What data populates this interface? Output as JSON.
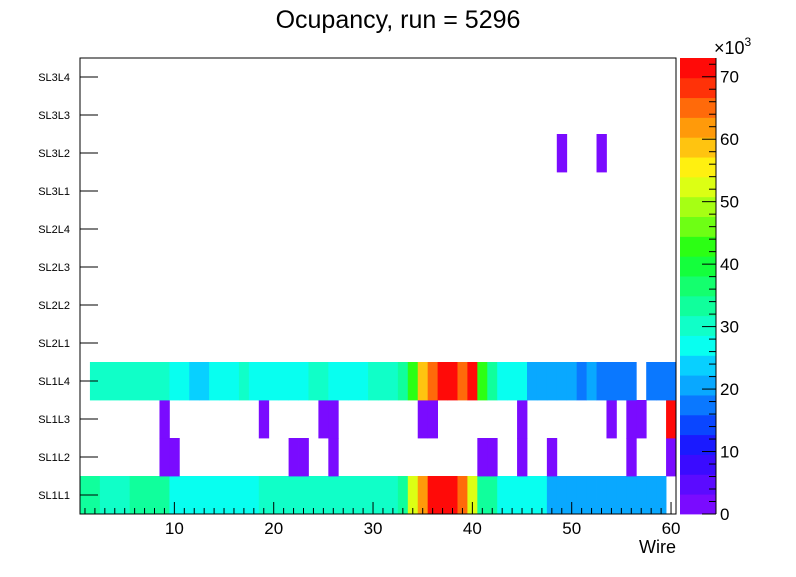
{
  "chart_data": {
    "type": "heatmap",
    "title": "Ocupancy, run = 5296",
    "xlabel": "Wire",
    "ylabel": "",
    "x_ticks": [
      10,
      20,
      30,
      40,
      50,
      60
    ],
    "xlim": [
      0.5,
      60.5
    ],
    "y_categories": [
      "SL1L1",
      "SL1L2",
      "SL1L3",
      "SL1L4",
      "SL2L1",
      "SL2L2",
      "SL2L3",
      "SL2L4",
      "SL3L1",
      "SL3L2",
      "SL3L3",
      "SL3L4"
    ],
    "colorbar": {
      "zlim": [
        0,
        73
      ],
      "ticks": [
        0,
        10,
        20,
        30,
        40,
        50,
        60,
        70
      ],
      "exponent_label": "×10",
      "exponent": "3"
    },
    "rows": {
      "SL1L1": [
        33,
        33,
        31,
        31,
        31,
        34,
        34,
        34,
        32,
        26,
        26,
        26,
        26,
        26,
        26,
        26,
        26,
        26,
        31,
        31,
        31,
        31,
        31,
        31,
        31,
        31,
        31,
        31,
        31,
        31,
        31,
        31,
        34,
        53,
        63,
        72,
        72,
        72,
        65,
        53,
        34,
        34,
        28,
        28,
        28,
        28,
        28,
        22,
        22,
        22,
        22,
        22,
        22,
        22,
        22,
        22,
        20,
        20,
        20,
        0
      ],
      "SL1L2": [
        0,
        0,
        0,
        0,
        0,
        0,
        0,
        0,
        3,
        3,
        0,
        0,
        0,
        0,
        0,
        0,
        0,
        0,
        0,
        0,
        0,
        3,
        3,
        0,
        0,
        3,
        0,
        0,
        0,
        0,
        0,
        0,
        0,
        0,
        0,
        0,
        0,
        0,
        0,
        0,
        3,
        3,
        0,
        0,
        3,
        0,
        0,
        3,
        0,
        0,
        0,
        0,
        0,
        0,
        0,
        3,
        0,
        0,
        0,
        3
      ],
      "SL1L3": [
        0,
        0,
        0,
        0,
        0,
        0,
        0,
        0,
        3,
        0,
        0,
        0,
        0,
        0,
        0,
        0,
        0,
        0,
        3,
        0,
        0,
        0,
        0,
        0,
        3,
        3,
        0,
        0,
        0,
        0,
        0,
        0,
        0,
        0,
        3,
        3,
        0,
        0,
        0,
        0,
        0,
        0,
        0,
        0,
        3,
        0,
        0,
        0,
        0,
        0,
        0,
        0,
        0,
        3,
        0,
        3,
        3,
        0,
        0,
        72
      ],
      "SL1L4": [
        0,
        29,
        29,
        29,
        29,
        29,
        29,
        29,
        29,
        26,
        26,
        24,
        24,
        26,
        26,
        26,
        29,
        28,
        28,
        28,
        28,
        28,
        28,
        31,
        31,
        28,
        28,
        28,
        28,
        31,
        31,
        31,
        34,
        44,
        60,
        66,
        72,
        72,
        66,
        72,
        44,
        34,
        28,
        28,
        28,
        22,
        22,
        22,
        22,
        22,
        19,
        22,
        19,
        19,
        19,
        19,
        0,
        18,
        18,
        18
      ],
      "SL2L1": [],
      "SL2L2": [],
      "SL2L3": [],
      "SL2L4": [],
      "SL3L1": [],
      "SL3L2": {
        "49": 3,
        "53": 3
      },
      "SL3L3": [],
      "SL3L4": []
    }
  }
}
